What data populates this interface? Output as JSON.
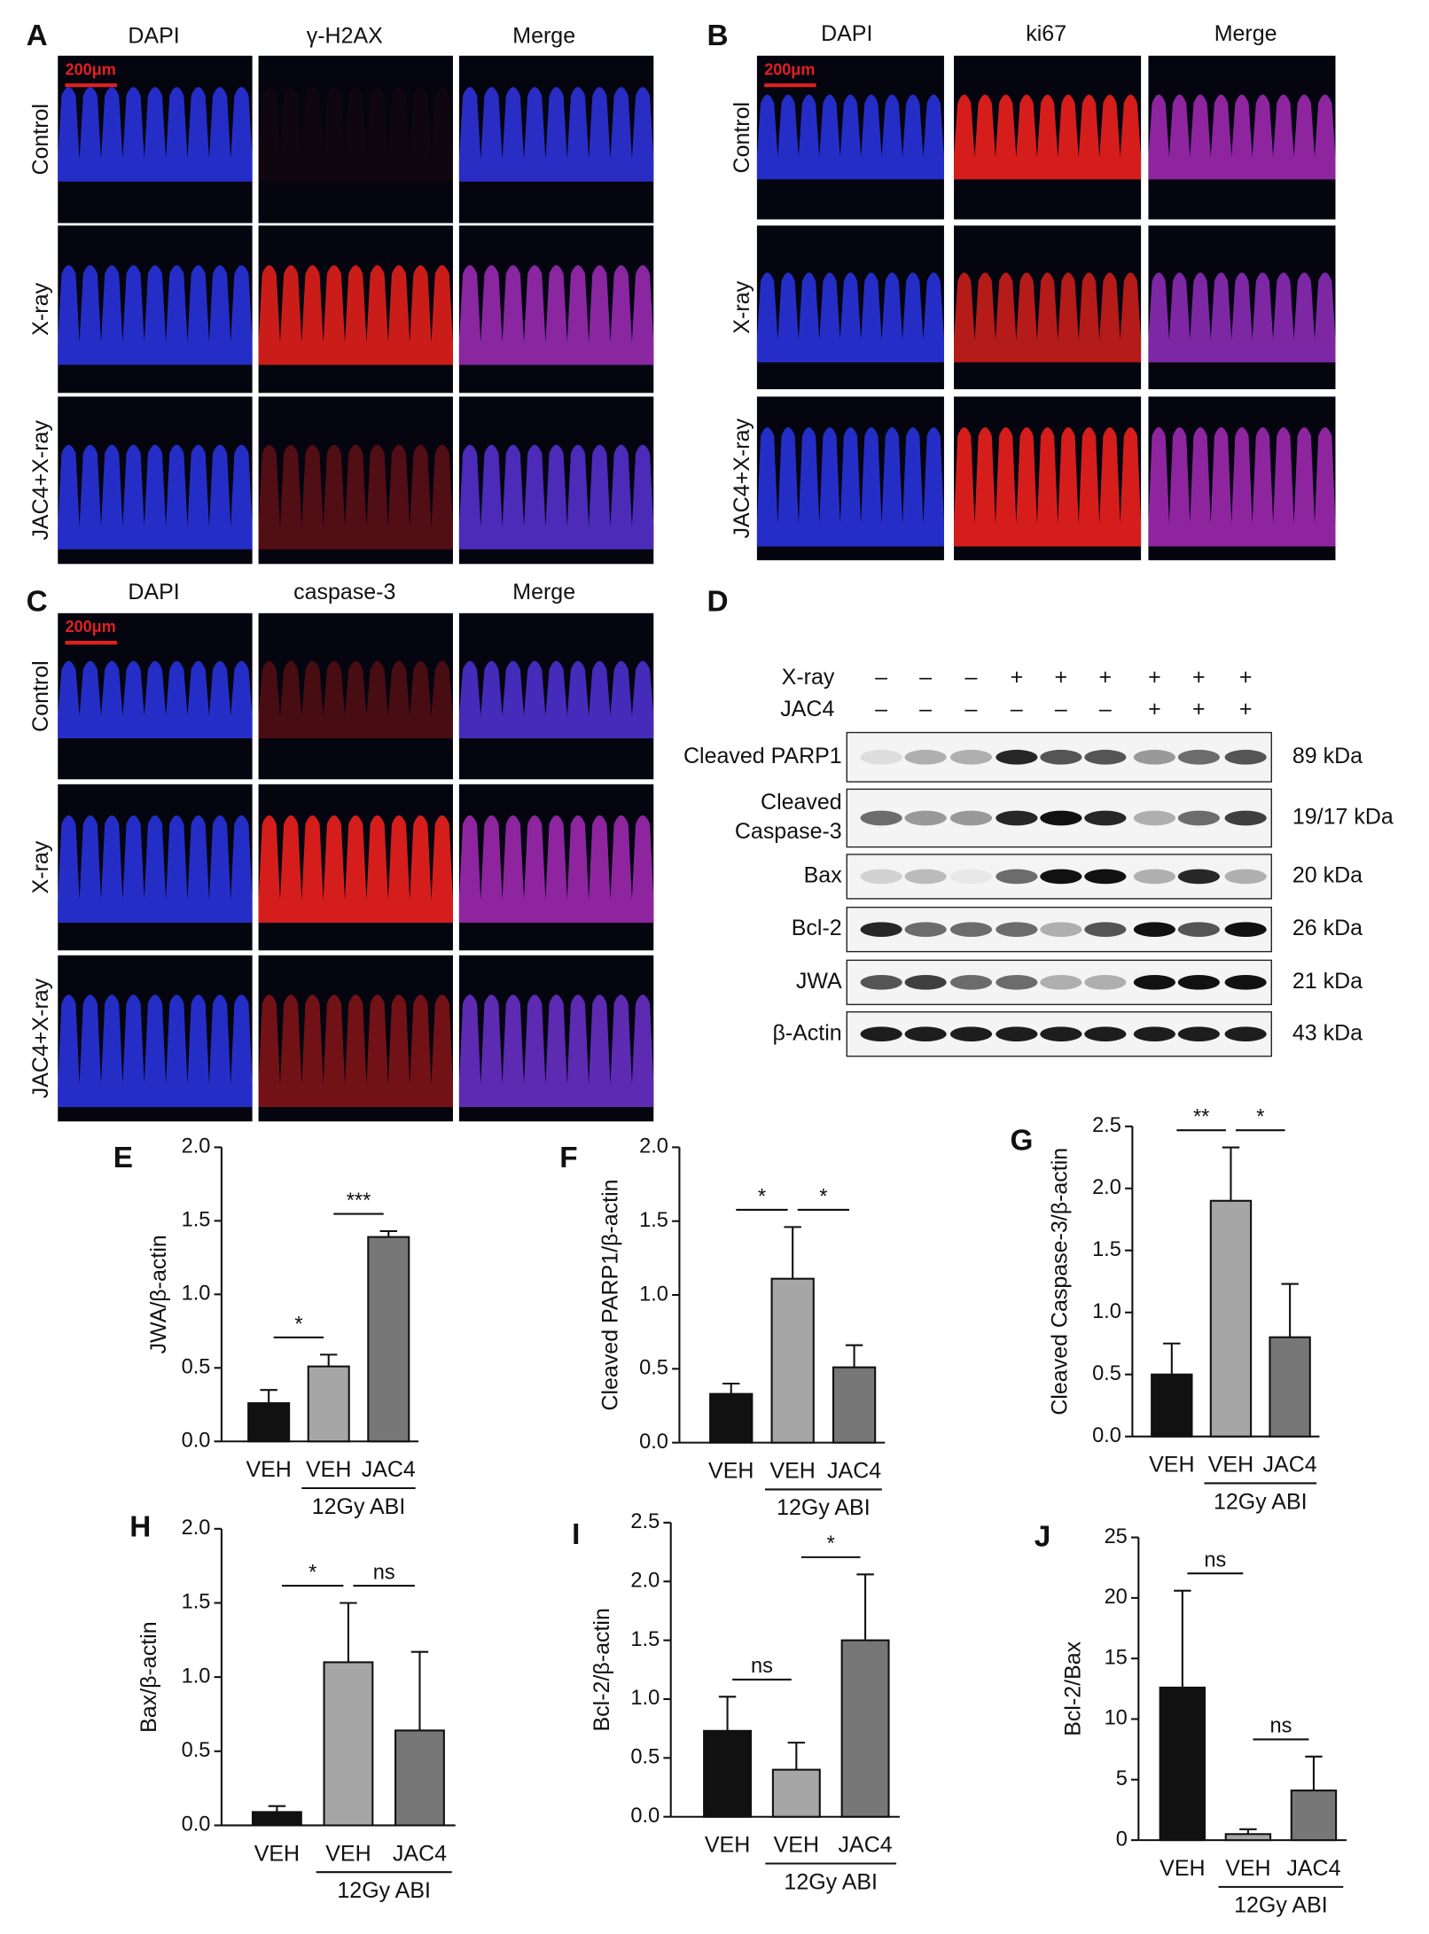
{
  "figure": {
    "micrographs": [
      {
        "letter": "A",
        "columns": [
          "DAPI",
          "γ-H2AX",
          "Merge"
        ],
        "rows": [
          "Control",
          "X-ray",
          "JAC4+X-ray"
        ],
        "scale_bar": "200μm"
      },
      {
        "letter": "B",
        "columns": [
          "DAPI",
          "ki67",
          "Merge"
        ],
        "rows": [
          "Control",
          "X-ray",
          "JAC4+X-ray"
        ],
        "scale_bar": "200μm"
      },
      {
        "letter": "C",
        "columns": [
          "DAPI",
          "caspase-3",
          "Merge"
        ],
        "rows": [
          "Control",
          "X-ray",
          "JAC4+X-ray"
        ],
        "scale_bar": "200μm"
      }
    ],
    "western_blot": {
      "letter": "D",
      "treatments": [
        {
          "name": "X-ray",
          "lanes": [
            "–",
            "–",
            "–",
            "+",
            "+",
            "+",
            "+",
            "+",
            "+"
          ]
        },
        {
          "name": "JAC4",
          "lanes": [
            "–",
            "–",
            "–",
            "–",
            "–",
            "–",
            "+",
            "+",
            "+"
          ]
        }
      ],
      "bands": [
        {
          "label_lines": [
            "Cleaved PARP1"
          ],
          "size": "89 kDa"
        },
        {
          "label_lines": [
            "Cleaved",
            "Caspase-3"
          ],
          "size": "19/17 kDa"
        },
        {
          "label_lines": [
            "Bax"
          ],
          "size": "20 kDa"
        },
        {
          "label_lines": [
            "Bcl-2"
          ],
          "size": "26 kDa"
        },
        {
          "label_lines": [
            "JWA"
          ],
          "size": "21 kDa"
        },
        {
          "label_lines": [
            "β-Actin"
          ],
          "size": "43 kDa"
        }
      ]
    }
  },
  "chart_data": [
    {
      "type": "bar",
      "letter": "E",
      "y_label": "JWA/β-actin",
      "categories": [
        "VEH",
        "VEH",
        "JAC4"
      ],
      "group_label": "12Gy ABI",
      "values": [
        0.26,
        0.51,
        1.39
      ],
      "errors": [
        0.09,
        0.08,
        0.04
      ],
      "colors": [
        "#111111",
        "#a6a6a6",
        "#777777"
      ],
      "ylim": [
        0,
        2
      ],
      "yticks": [
        {
          "value": 0,
          "label": "0.0"
        },
        0.5,
        {
          "value": 1,
          "label": "1.0"
        },
        1.5,
        {
          "value": 2,
          "label": "2.0"
        }
      ],
      "significance": [
        {
          "bars": [
            0,
            1
          ],
          "label": "*"
        },
        {
          "bars": [
            1,
            2
          ],
          "label": "***"
        }
      ]
    },
    {
      "type": "bar",
      "letter": "F",
      "y_label": "Cleaved PARP1/β-actin",
      "categories": [
        "VEH",
        "VEH",
        "JAC4"
      ],
      "group_label": "12Gy ABI",
      "values": [
        0.33,
        1.11,
        0.51
      ],
      "errors": [
        0.07,
        0.35,
        0.15
      ],
      "colors": [
        "#111111",
        "#a6a6a6",
        "#777777"
      ],
      "ylim": [
        0,
        2
      ],
      "yticks": [
        {
          "value": 0,
          "label": "0.0"
        },
        0.5,
        {
          "value": 1,
          "label": "1.0"
        },
        1.5,
        {
          "value": 2,
          "label": "2.0"
        }
      ],
      "significance": [
        {
          "bars": [
            0,
            1
          ],
          "label": "*"
        },
        {
          "bars": [
            1,
            2
          ],
          "label": "*"
        }
      ]
    },
    {
      "type": "bar",
      "letter": "G",
      "y_label": "Cleaved Caspase-3/β-actin",
      "categories": [
        "VEH",
        "VEH",
        "JAC4"
      ],
      "group_label": "12Gy ABI",
      "values": [
        0.5,
        1.9,
        0.8
      ],
      "errors": [
        0.25,
        0.43,
        0.43
      ],
      "colors": [
        "#111111",
        "#a6a6a6",
        "#777777"
      ],
      "ylim": [
        0,
        2.5
      ],
      "yticks": [
        {
          "value": 0,
          "label": "0.0"
        },
        0.5,
        {
          "value": 1,
          "label": "1.0"
        },
        1.5,
        {
          "value": 2,
          "label": "2.0"
        },
        2.5
      ],
      "significance": [
        {
          "bars": [
            0,
            1
          ],
          "label": "**"
        },
        {
          "bars": [
            1,
            2
          ],
          "label": "*"
        }
      ]
    },
    {
      "type": "bar",
      "letter": "H",
      "y_label": "Bax/β-actin",
      "categories": [
        "VEH",
        "VEH",
        "JAC4"
      ],
      "group_label": "12Gy ABI",
      "values": [
        0.09,
        1.1,
        0.64
      ],
      "errors": [
        0.04,
        0.4,
        0.53
      ],
      "colors": [
        "#111111",
        "#a6a6a6",
        "#777777"
      ],
      "ylim": [
        0,
        2
      ],
      "yticks": [
        {
          "value": 0,
          "label": "0.0"
        },
        0.5,
        {
          "value": 1,
          "label": "1.0"
        },
        1.5,
        {
          "value": 2,
          "label": "2.0"
        }
      ],
      "significance": [
        {
          "bars": [
            0,
            1
          ],
          "label": "*"
        },
        {
          "bars": [
            1,
            2
          ],
          "label": "ns"
        }
      ]
    },
    {
      "type": "bar",
      "letter": "I",
      "y_label": "Bcl-2/β-actin",
      "categories": [
        "VEH",
        "VEH",
        "JAC4"
      ],
      "group_label": "12Gy ABI",
      "values": [
        0.73,
        0.4,
        1.5
      ],
      "errors": [
        0.29,
        0.23,
        0.56
      ],
      "colors": [
        "#111111",
        "#a6a6a6",
        "#777777"
      ],
      "ylim": [
        0,
        2.5
      ],
      "yticks": [
        {
          "value": 0,
          "label": "0.0"
        },
        0.5,
        {
          "value": 1,
          "label": "1.0"
        },
        1.5,
        {
          "value": 2,
          "label": "2.0"
        },
        2.5
      ],
      "significance": [
        {
          "bars": [
            0,
            1
          ],
          "label": "ns"
        },
        {
          "bars": [
            1,
            2
          ],
          "label": "*"
        }
      ]
    },
    {
      "type": "bar",
      "letter": "J",
      "y_label": "Bcl-2/Bax",
      "categories": [
        "VEH",
        "VEH",
        "JAC4"
      ],
      "group_label": "12Gy ABI",
      "values": [
        12.6,
        0.5,
        4.1
      ],
      "errors": [
        8.0,
        0.4,
        2.8
      ],
      "colors": [
        "#111111",
        "#a6a6a6",
        "#777777"
      ],
      "ylim": [
        0,
        25
      ],
      "yticks": [
        0,
        5,
        10,
        15,
        20,
        25
      ],
      "significance": [
        {
          "bars": [
            0,
            1
          ],
          "label": "ns"
        },
        {
          "bars": [
            1,
            2
          ],
          "label": "ns"
        }
      ]
    }
  ]
}
